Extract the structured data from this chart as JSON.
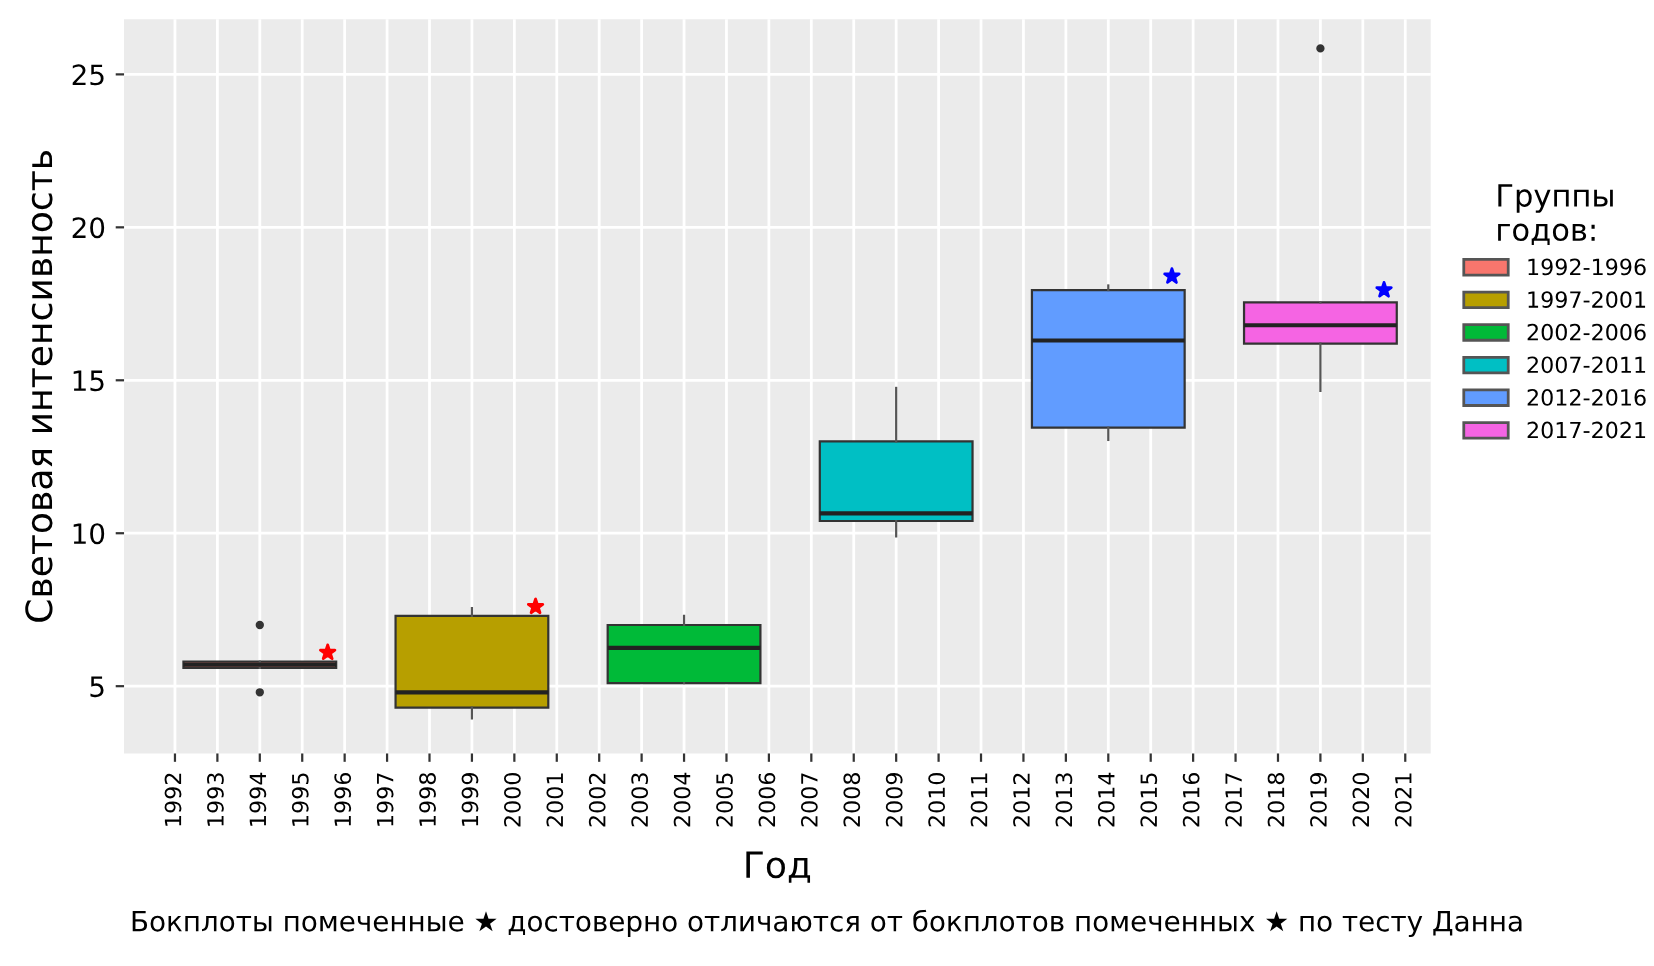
{
  "chart_data": {
    "type": "box",
    "xlabel": "Год",
    "ylabel": "Световая интенсивность",
    "legend_title": "Группы\nгодов:",
    "legend": "right",
    "grid": true,
    "xlim": [
      1990.8,
      2021.6
    ],
    "xticks": [
      1992,
      1993,
      1994,
      1995,
      1996,
      1997,
      1998,
      1999,
      2000,
      2001,
      2002,
      2003,
      2004,
      2005,
      2006,
      2007,
      2008,
      2009,
      2010,
      2011,
      2012,
      2013,
      2014,
      2015,
      2016,
      2017,
      2018,
      2019,
      2020,
      2021
    ],
    "ylim": [
      2.8,
      26.8
    ],
    "yticks": [
      5,
      10,
      15,
      20,
      25
    ],
    "series": [
      {
        "name": "1992-1996",
        "color": "#f8766d",
        "x": [
          1994
        ],
        "boxes": [
          {
            "low": 5.6,
            "q1": 5.6,
            "median": 5.7,
            "q3": 5.8,
            "high": 5.8,
            "outliers": [
              7.0,
              4.8
            ]
          }
        ]
      },
      {
        "name": "1997-2001",
        "color": "#b79f00",
        "x": [
          1999
        ],
        "boxes": [
          {
            "low": 3.95,
            "q1": 4.3,
            "median": 4.8,
            "q3": 7.3,
            "high": 7.55
          }
        ]
      },
      {
        "name": "2002-2006",
        "color": "#00ba38",
        "x": [
          2004
        ],
        "boxes": [
          {
            "low": 5.1,
            "q1": 5.1,
            "median": 6.25,
            "q3": 7.0,
            "high": 7.3
          }
        ]
      },
      {
        "name": "2007-2011",
        "color": "#00bfc4",
        "x": [
          2009
        ],
        "boxes": [
          {
            "low": 9.9,
            "q1": 10.4,
            "median": 10.65,
            "q3": 13.0,
            "high": 14.75
          }
        ]
      },
      {
        "name": "2012-2016",
        "color": "#619cff",
        "x": [
          2014
        ],
        "boxes": [
          {
            "low": 13.05,
            "q1": 13.45,
            "median": 16.3,
            "q3": 17.95,
            "high": 18.1
          }
        ]
      },
      {
        "name": "2017-2021",
        "color": "#f564e3",
        "x": [
          2019
        ],
        "boxes": [
          {
            "low": 14.65,
            "q1": 16.2,
            "median": 16.8,
            "q3": 17.55,
            "high": 17.55,
            "outliers": [
              25.85
            ]
          }
        ]
      },
      {
        "type": "scatter",
        "marker": "star",
        "color": "#ff0000",
        "x": [
          1995.6,
          2000.5
        ],
        "values": [
          6.1,
          7.6
        ]
      },
      {
        "type": "scatter",
        "marker": "star",
        "color": "#0000ff",
        "x": [
          2015.5,
          2020.5
        ],
        "values": [
          18.4,
          17.95
        ]
      }
    ],
    "annotations": [
      "Бокплоты помеченные ★ достоверно отличаются от бокплотов помеченных ★ по тесту Данна"
    ]
  }
}
